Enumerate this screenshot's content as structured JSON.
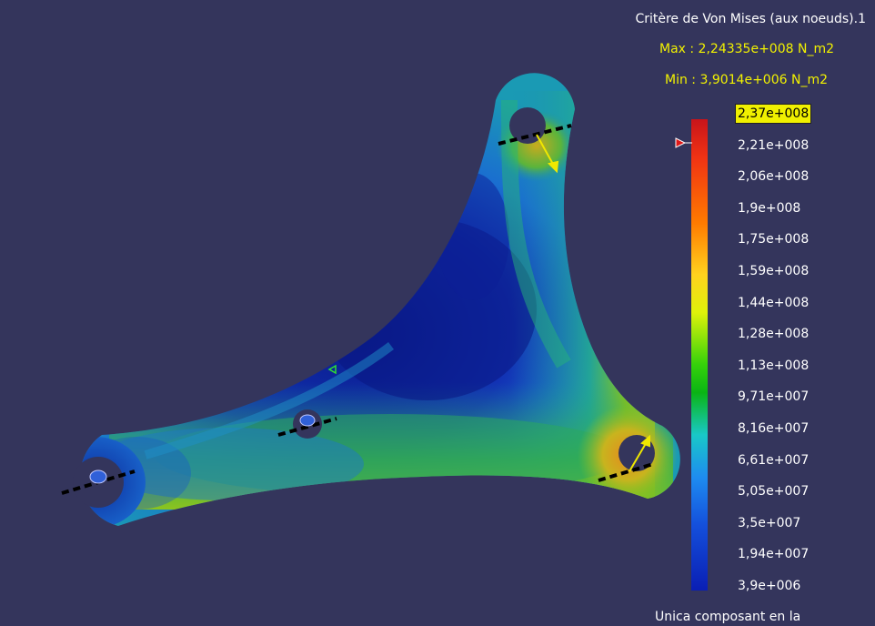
{
  "legend": {
    "title": "Critère de Von Mises (aux noeuds).1",
    "max": "Max : 2,24335e+008 N_m2",
    "min": "Min : 3,9014e+006 N_m2",
    "ticks": [
      "2,37e+008",
      "2,21e+008",
      "2,06e+008",
      "1,9e+008",
      "1,75e+008",
      "1,59e+008",
      "1,44e+008",
      "1,28e+008",
      "1,13e+008",
      "9,71e+007",
      "8,16e+007",
      "6,61e+007",
      "5,05e+007",
      "3,5e+007",
      "1,94e+007",
      "3,9e+006"
    ],
    "footer": "Unica composant en la",
    "colors": {
      "max_highlight": "#f0f000",
      "background": "#34355c",
      "text_highlight": "#f2f200"
    }
  },
  "viewport": {
    "icons": [
      "tri-bracket-part",
      "load-arrow-icon",
      "clamp-restraint-icon",
      "triangle-marker-icon"
    ]
  }
}
